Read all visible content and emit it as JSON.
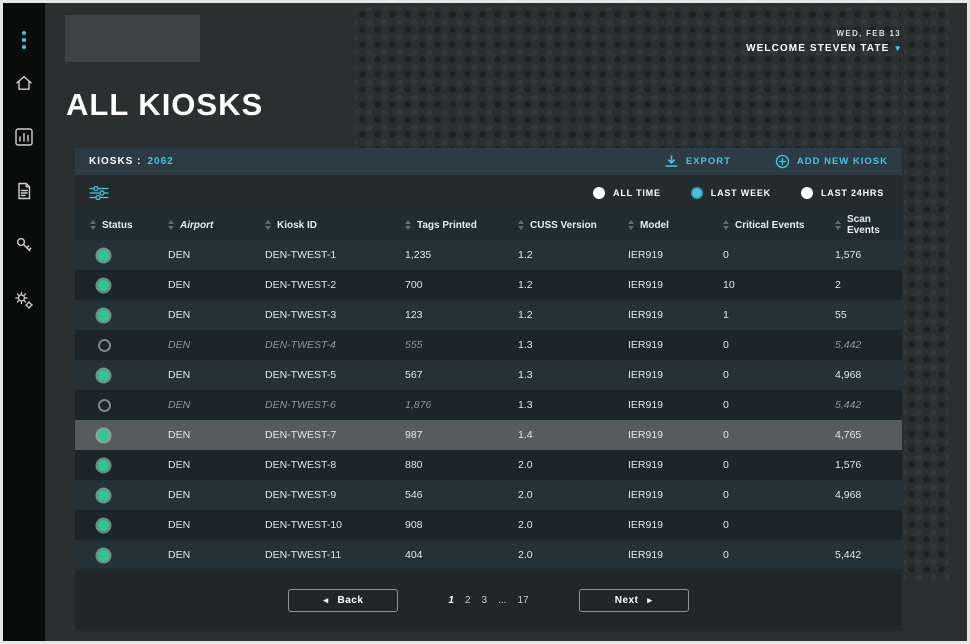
{
  "app": {
    "date": "WED, FEB 13",
    "welcome": "WELCOME STEVEN TATE",
    "title": "ALL KIOSKS"
  },
  "sidebar": {
    "icons": [
      "kebab-menu",
      "home",
      "analytics-chart",
      "document",
      "key",
      "settings-gears"
    ]
  },
  "panel": {
    "kiosks_label": "KIOSKS :",
    "kiosks_count": "2062",
    "export_label": "EXPORT",
    "add_new_label": "ADD NEW KIOSK",
    "filters": [
      {
        "label": "ALL TIME",
        "selected": false
      },
      {
        "label": "LAST WEEK",
        "selected": true
      },
      {
        "label": "LAST 24HRS",
        "selected": false
      }
    ]
  },
  "table": {
    "columns": [
      {
        "label": "Status",
        "italic": false
      },
      {
        "label": "Airport",
        "italic": true
      },
      {
        "label": "Kiosk ID",
        "italic": false
      },
      {
        "label": "Tags Printed",
        "italic": false
      },
      {
        "label": "CUSS Version",
        "italic": false
      },
      {
        "label": "Model",
        "italic": false
      },
      {
        "label": "Critical Events",
        "italic": false
      },
      {
        "label": "Scan Events",
        "italic": false
      }
    ],
    "rows": [
      {
        "airport": "DEN",
        "kiosk_id": "DEN-TWEST-1",
        "tags_printed": "1,235",
        "cuss_version": "1.2",
        "model": "IER919",
        "critical_events": "0",
        "scan_events": "1,576",
        "inactive": false,
        "highlighted": false
      },
      {
        "airport": "DEN",
        "kiosk_id": "DEN-TWEST-2",
        "tags_printed": "700",
        "cuss_version": "1.2",
        "model": "IER919",
        "critical_events": "10",
        "scan_events": "2",
        "inactive": false,
        "highlighted": false
      },
      {
        "airport": "DEN",
        "kiosk_id": "DEN-TWEST-3",
        "tags_printed": "123",
        "cuss_version": "1.2",
        "model": "IER919",
        "critical_events": "1",
        "scan_events": "55",
        "inactive": false,
        "highlighted": false
      },
      {
        "airport": "DEN",
        "kiosk_id": "DEN-TWEST-4",
        "tags_printed": "555",
        "cuss_version": "1.3",
        "model": "IER919",
        "critical_events": "0",
        "scan_events": "5,442",
        "inactive": true,
        "highlighted": false
      },
      {
        "airport": "DEN",
        "kiosk_id": "DEN-TWEST-5",
        "tags_printed": "567",
        "cuss_version": "1.3",
        "model": "IER919",
        "critical_events": "0",
        "scan_events": "4,968",
        "inactive": false,
        "highlighted": false
      },
      {
        "airport": "DEN",
        "kiosk_id": "DEN-TWEST-6",
        "tags_printed": "1,876",
        "cuss_version": "1.3",
        "model": "IER919",
        "critical_events": "0",
        "scan_events": "5,442",
        "inactive": true,
        "highlighted": false
      },
      {
        "airport": "DEN",
        "kiosk_id": "DEN-TWEST-7",
        "tags_printed": "987",
        "cuss_version": "1.4",
        "model": "IER919",
        "critical_events": "0",
        "scan_events": "4,765",
        "inactive": false,
        "highlighted": true
      },
      {
        "airport": "DEN",
        "kiosk_id": "DEN-TWEST-8",
        "tags_printed": "880",
        "cuss_version": "2.0",
        "model": "IER919",
        "critical_events": "0",
        "scan_events": "1,576",
        "inactive": false,
        "highlighted": false
      },
      {
        "airport": "DEN",
        "kiosk_id": "DEN-TWEST-9",
        "tags_printed": "546",
        "cuss_version": "2.0",
        "model": "IER919",
        "critical_events": "0",
        "scan_events": "4,968",
        "inactive": false,
        "highlighted": false
      },
      {
        "airport": "DEN",
        "kiosk_id": "DEN-TWEST-10",
        "tags_printed": "908",
        "cuss_version": "2.0",
        "model": "IER919",
        "critical_events": "0",
        "scan_events": "",
        "inactive": false,
        "highlighted": false
      },
      {
        "airport": "DEN",
        "kiosk_id": "DEN-TWEST-11",
        "tags_printed": "404",
        "cuss_version": "2.0",
        "model": "IER919",
        "critical_events": "0",
        "scan_events": "5,442",
        "inactive": false,
        "highlighted": false
      }
    ]
  },
  "pagination": {
    "back_label": "Back",
    "next_label": "Next",
    "back_arrow": "◂",
    "next_arrow": "▸",
    "pages": [
      "1",
      "2",
      "3",
      "...",
      "17"
    ],
    "current_page": "1"
  },
  "colors": {
    "accent": "#3EC6E0",
    "status_green": "#2BC893",
    "sidebar_bg": "#0A0C0C",
    "page_bg": "#2A2F30"
  }
}
